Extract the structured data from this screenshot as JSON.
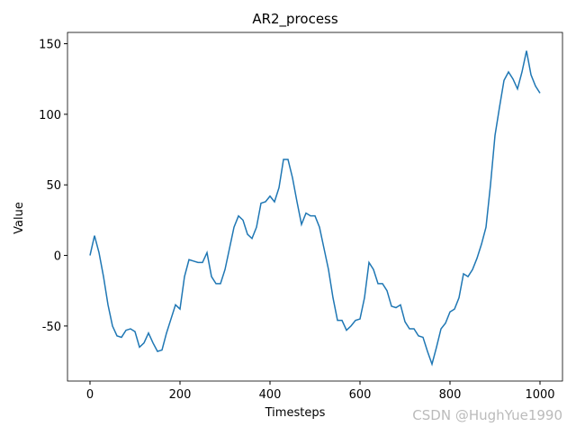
{
  "chart_data": {
    "type": "line",
    "title": "AR2_process",
    "x_label": "Timesteps",
    "y_label": "Value",
    "annotation": "CSDN @HughYue1990",
    "x": [
      0,
      10,
      20,
      30,
      40,
      50,
      60,
      70,
      80,
      90,
      100,
      110,
      120,
      130,
      140,
      150,
      160,
      170,
      180,
      190,
      200,
      210,
      220,
      230,
      240,
      250,
      260,
      270,
      280,
      290,
      300,
      310,
      320,
      330,
      340,
      350,
      360,
      370,
      380,
      390,
      400,
      410,
      420,
      430,
      440,
      450,
      460,
      470,
      480,
      490,
      500,
      510,
      520,
      530,
      540,
      550,
      560,
      570,
      580,
      590,
      600,
      610,
      620,
      630,
      640,
      650,
      660,
      670,
      680,
      690,
      700,
      710,
      720,
      730,
      740,
      750,
      760,
      770,
      780,
      790,
      800,
      810,
      820,
      830,
      840,
      850,
      860,
      870,
      880,
      890,
      900,
      910,
      920,
      930,
      940,
      950,
      960,
      970,
      980,
      990,
      1000
    ],
    "series": [
      {
        "name": "AR2_process",
        "color": "#1f77b4",
        "values": [
          0,
          14,
          2,
          -15,
          -35,
          -50,
          -57,
          -58,
          -53,
          -52,
          -54,
          -65,
          -62,
          -55,
          -62,
          -68,
          -67,
          -55,
          -45,
          -35,
          -38,
          -15,
          -3,
          -4,
          -5,
          -5,
          2,
          -15,
          -20,
          -20,
          -10,
          5,
          20,
          28,
          25,
          15,
          12,
          20,
          37,
          38,
          42,
          38,
          48,
          68,
          68,
          55,
          38,
          22,
          30,
          28,
          28,
          20,
          5,
          -10,
          -30,
          -46,
          -46,
          -53,
          -50,
          -46,
          -45,
          -30,
          -5,
          -10,
          -20,
          -20,
          -25,
          -36,
          -37,
          -35,
          -47,
          -52,
          -52,
          -57,
          -58,
          -68,
          -77,
          -65,
          -52,
          -48,
          -40,
          -38,
          -30,
          -13,
          -15,
          -10,
          -2,
          8,
          20,
          50,
          85,
          105,
          124,
          130,
          125,
          118,
          130,
          145,
          128,
          120,
          115
        ]
      }
    ],
    "xlim": [
      -50,
      1050
    ],
    "xticks": [
      0,
      200,
      400,
      600,
      800,
      1000
    ],
    "ylim": [
      -89,
      158
    ],
    "yticks": [
      -50,
      0,
      50,
      100,
      150
    ]
  }
}
